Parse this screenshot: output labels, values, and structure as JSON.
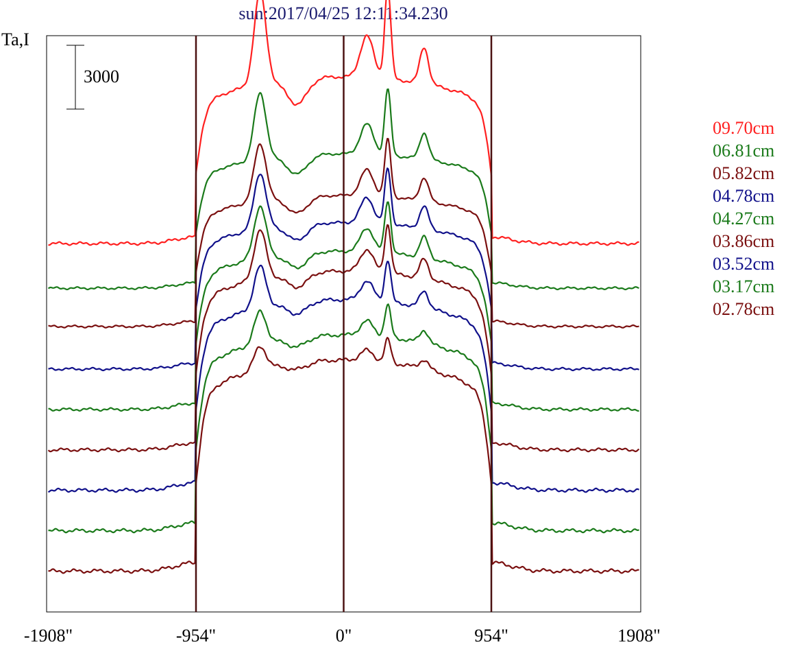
{
  "chart_data": {
    "type": "line",
    "title": "sun:2017/04/25 12:11:34.230",
    "ylabel": "Ta,I",
    "scale_bar_label": "3000",
    "x_ticks": [
      "-1908\"",
      "-954\"",
      "0\"",
      "954\"",
      "1908\""
    ],
    "xlim": [
      -1908,
      1908
    ],
    "vertical_lines_at": [
      -954,
      0,
      954
    ],
    "vertical_line_color": "#4a1010",
    "series": [
      {
        "name": "09.70cm",
        "color": "#ff1f1f"
      },
      {
        "name": "06.81cm",
        "color": "#1a7a1a"
      },
      {
        "name": "05.82cm",
        "color": "#7a0f0f"
      },
      {
        "name": "04.78cm",
        "color": "#10108a"
      },
      {
        "name": "04.27cm",
        "color": "#1a7a1a"
      },
      {
        "name": "03.86cm",
        "color": "#7a0f0f"
      },
      {
        "name": "03.52cm",
        "color": "#10108a"
      },
      {
        "name": "03.17cm",
        "color": "#1a7a1a"
      },
      {
        "name": "02.78cm",
        "color": "#7a0f0f"
      }
    ],
    "plotted_traces": [
      {
        "color": "#ff1f1f",
        "baseline": 0,
        "peak": 9800
      },
      {
        "color": "#1a7a1a",
        "baseline": -2100,
        "peak": 5800
      },
      {
        "color": "#7a0f0f",
        "baseline": -3900,
        "peak": 3800
      },
      {
        "color": "#10108a",
        "baseline": -5900,
        "peak": 2700
      },
      {
        "color": "#1a7a1a",
        "baseline": -7800,
        "peak": 1500
      },
      {
        "color": "#7a0f0f",
        "baseline": -9700,
        "peak": 800
      },
      {
        "color": "#10108a",
        "baseline": -11600,
        "peak": -400
      },
      {
        "color": "#1a7a1a",
        "baseline": -13500,
        "peak": -2000
      },
      {
        "color": "#7a0f0f",
        "baseline": -15400,
        "peak": -3000
      }
    ],
    "legend_position": "right"
  }
}
